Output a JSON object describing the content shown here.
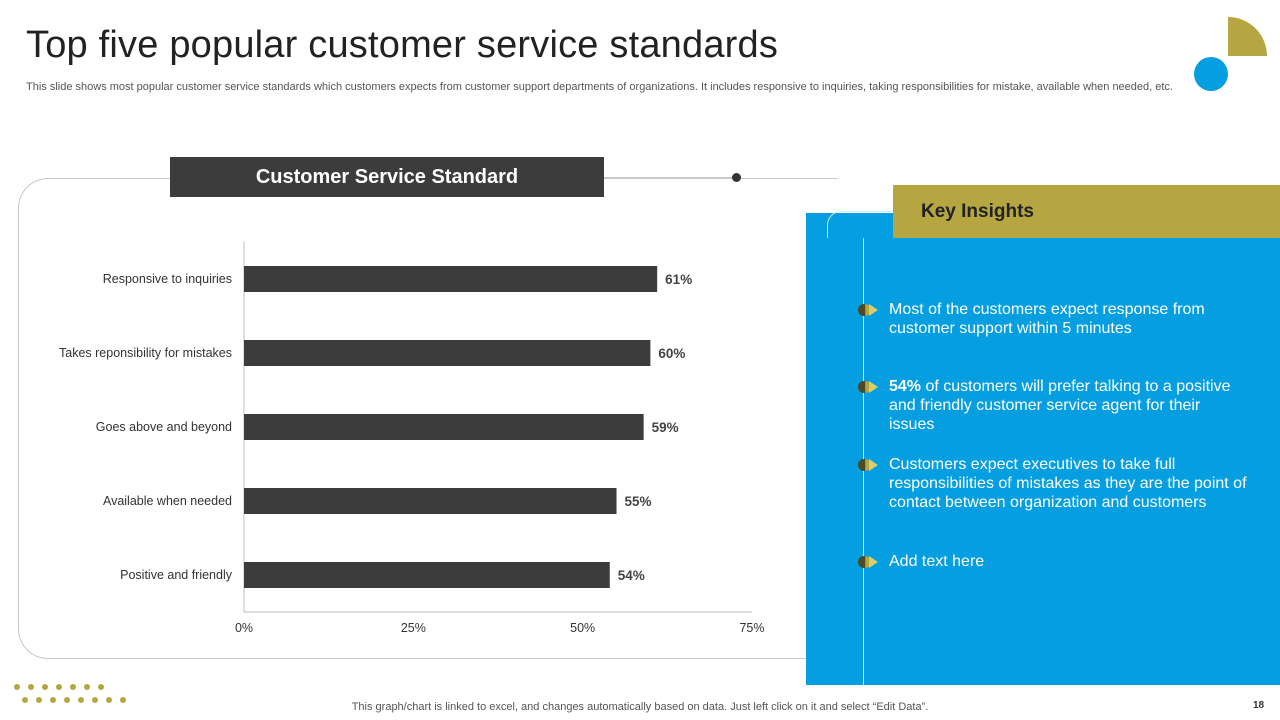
{
  "slide": {
    "title": "Top five popular customer service standards",
    "subtitle": "This slide shows most popular customer service standards which customers expects from customer support departments of organizations. It includes responsive to inquiries, taking responsibilities for mistake, available when needed, etc.",
    "footer_note": "This graph/chart is linked to excel, and changes automatically based on data. Just left click on it and select “Edit Data”.",
    "page_number": "18"
  },
  "colors": {
    "accent_olive": "#b5a642",
    "accent_blue": "#059ee0",
    "bar_dark": "#3c3c3c"
  },
  "chart_header": "Customer Service Standard",
  "chart_data": {
    "type": "bar",
    "orientation": "horizontal",
    "title": "Customer Service Standard",
    "categories": [
      "Responsive to inquiries",
      "Takes reponsibility for mistakes",
      "Goes above and beyond",
      "Available when needed",
      "Positive and friendly"
    ],
    "values": [
      61,
      60,
      59,
      55,
      54
    ],
    "value_labels": [
      "61%",
      "60%",
      "59%",
      "55%",
      "54%"
    ],
    "xlim": [
      0,
      75
    ],
    "x_ticks": [
      0,
      25,
      50,
      75
    ],
    "x_tick_labels": [
      "0%",
      "25%",
      "50%",
      "75%"
    ],
    "xlabel": "",
    "ylabel": "",
    "grid": false
  },
  "insights": {
    "header": "Key Insights",
    "items": [
      {
        "bold": "",
        "text": "Most of the customers expect response from customer support within 5 minutes"
      },
      {
        "bold": "54%",
        "text": " of customers will prefer talking to a positive and friendly customer service agent for their issues"
      },
      {
        "bold": "",
        "text": "Customers expect executives to take full responsibilities of mistakes as they are the point of contact between organization and customers"
      },
      {
        "bold": "",
        "text": "Add text here"
      }
    ]
  }
}
